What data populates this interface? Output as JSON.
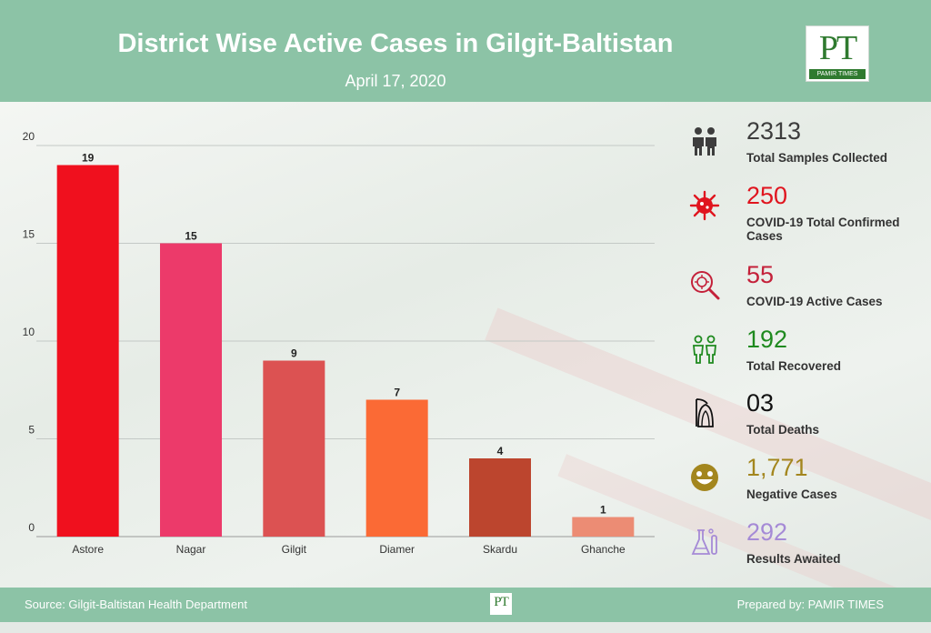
{
  "header": {
    "title": "District Wise Active Cases in Gilgit-Baltistan",
    "date": "April 17, 2020"
  },
  "logo": {
    "mark": "PT",
    "text": "PAMIR TIMES"
  },
  "chart_data": {
    "type": "bar",
    "categories": [
      "Astore",
      "Nagar",
      "Gilgit",
      "Diamer",
      "Skardu",
      "Ghanche"
    ],
    "values": [
      19,
      15,
      9,
      7,
      4,
      1
    ],
    "bar_colors": [
      "#f0101e",
      "#ec3a6a",
      "#dc5252",
      "#fb6a35",
      "#bc452e",
      "#ec8c74"
    ],
    "ylim": [
      0,
      20
    ],
    "yticks": [
      0,
      5,
      10,
      15,
      20
    ],
    "grid": true,
    "data_labels": true
  },
  "stats": [
    {
      "value": "2313",
      "label": "Total Samples Collected",
      "color": "#3d3d3d",
      "icon": "people-icon"
    },
    {
      "value": "250",
      "label": "COVID-19 Total Confirmed Cases",
      "color": "#e0141e",
      "icon": "virus-icon"
    },
    {
      "value": "55",
      "label": "COVID-19 Active Cases",
      "color": "#c4213a",
      "icon": "virus-search-icon"
    },
    {
      "value": "192",
      "label": "Total Recovered",
      "color": "#1f8a1f",
      "icon": "recovered-people-icon"
    },
    {
      "value": "03",
      "label": "Total Deaths",
      "color": "#111111",
      "icon": "grim-reaper-icon"
    },
    {
      "value": "1,771",
      "label": "Negative Cases",
      "color": "#a3861e",
      "icon": "smiley-icon"
    },
    {
      "value": "292",
      "label": "Results Awaited",
      "color": "#a58ad6",
      "icon": "lab-flask-icon"
    }
  ],
  "footer": {
    "source": "Source: Gilgit-Baltistan Health Department",
    "logo_mark": "PT",
    "prepared_by": "Prepared by: PAMIR TIMES"
  }
}
